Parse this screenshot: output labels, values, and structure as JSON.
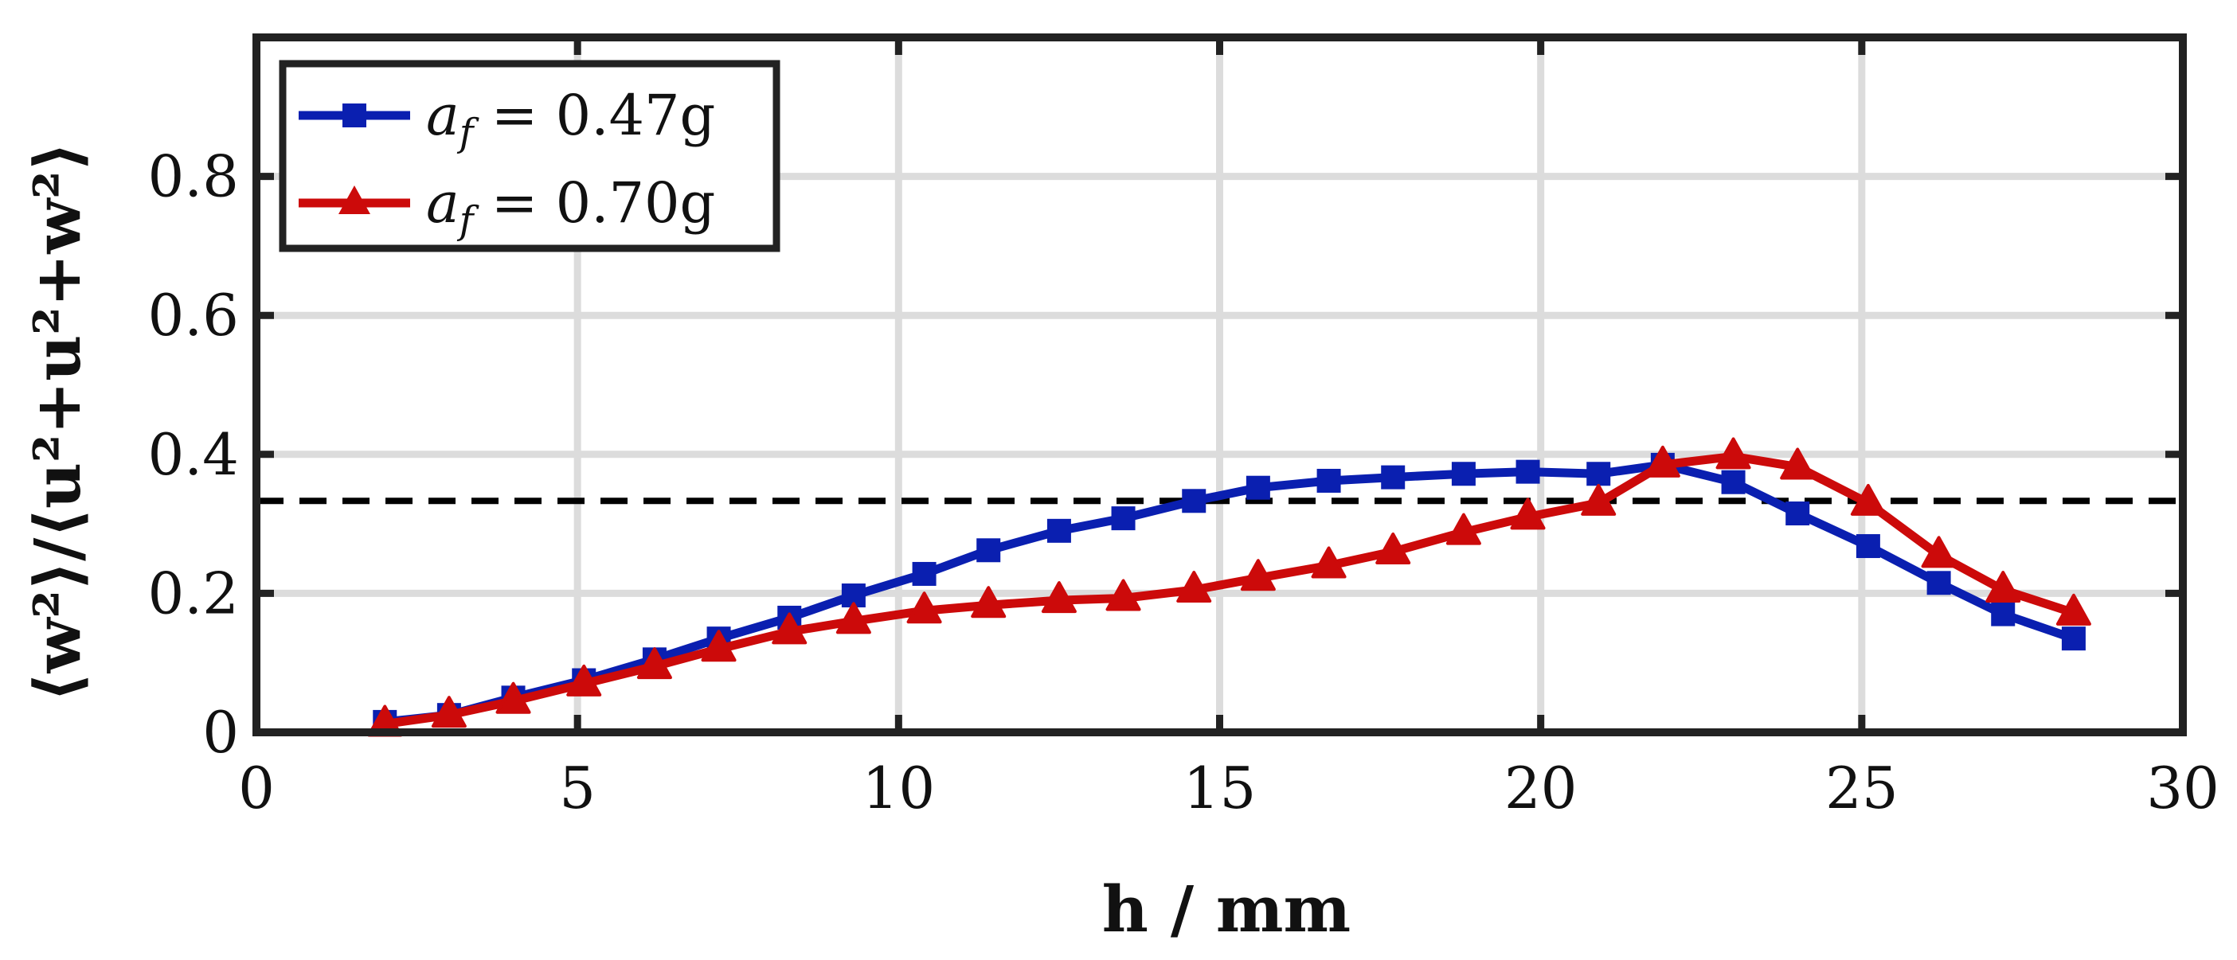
{
  "chart_data": {
    "type": "line",
    "title": "",
    "xlabel": "h / mm",
    "ylabel": "⟨w²⟩/⟨u²+u²+w²⟩",
    "xlim": [
      0,
      30
    ],
    "ylim": [
      0,
      1
    ],
    "xticks": [
      0,
      5,
      10,
      15,
      20,
      25,
      30
    ],
    "yticks": [
      0,
      0.2,
      0.4,
      0.6,
      0.8
    ],
    "xtick_labels": [
      "0",
      "5",
      "10",
      "15",
      "20",
      "25",
      "30"
    ],
    "ytick_labels": [
      "0",
      "0.2",
      "0.4",
      "0.6",
      "0.8"
    ],
    "grid": true,
    "legend_position": "top-left",
    "reference_line": {
      "y": 0.333,
      "style": "dashed",
      "color": "#000000"
    },
    "series": [
      {
        "name": "a_f = 0.47g",
        "legend_var": "a",
        "legend_sub": "f",
        "legend_rest": " = 0.47g",
        "color": "#0a1fb0",
        "marker": "square",
        "x": [
          2,
          3,
          4,
          5.1,
          6.2,
          7.2,
          8.3,
          9.3,
          10.4,
          11.4,
          12.5,
          13.5,
          14.6,
          15.6,
          16.7,
          17.7,
          18.8,
          19.8,
          20.9,
          21.9,
          23,
          24,
          25.1,
          26.2,
          27.2,
          28.3
        ],
        "y": [
          0.015,
          0.025,
          0.05,
          0.075,
          0.105,
          0.135,
          0.165,
          0.197,
          0.228,
          0.262,
          0.29,
          0.308,
          0.333,
          0.352,
          0.362,
          0.367,
          0.372,
          0.375,
          0.372,
          0.385,
          0.36,
          0.315,
          0.268,
          0.215,
          0.17,
          0.135
        ]
      },
      {
        "name": "a_f = 0.70g",
        "legend_var": "a",
        "legend_sub": "f",
        "legend_rest": " = 0.70g",
        "color": "#cc0a0a",
        "marker": "triangle",
        "x": [
          2,
          3,
          4,
          5.1,
          6.2,
          7.2,
          8.3,
          9.3,
          10.4,
          11.4,
          12.5,
          13.5,
          14.6,
          15.6,
          16.7,
          17.7,
          18.8,
          19.8,
          20.9,
          21.9,
          23,
          24,
          25.1,
          26.2,
          27.2,
          28.3
        ],
        "y": [
          0.012,
          0.025,
          0.045,
          0.07,
          0.095,
          0.12,
          0.145,
          0.16,
          0.175,
          0.183,
          0.19,
          0.193,
          0.205,
          0.222,
          0.24,
          0.26,
          0.288,
          0.31,
          0.33,
          0.385,
          0.397,
          0.382,
          0.33,
          0.255,
          0.205,
          0.172
        ]
      }
    ]
  }
}
